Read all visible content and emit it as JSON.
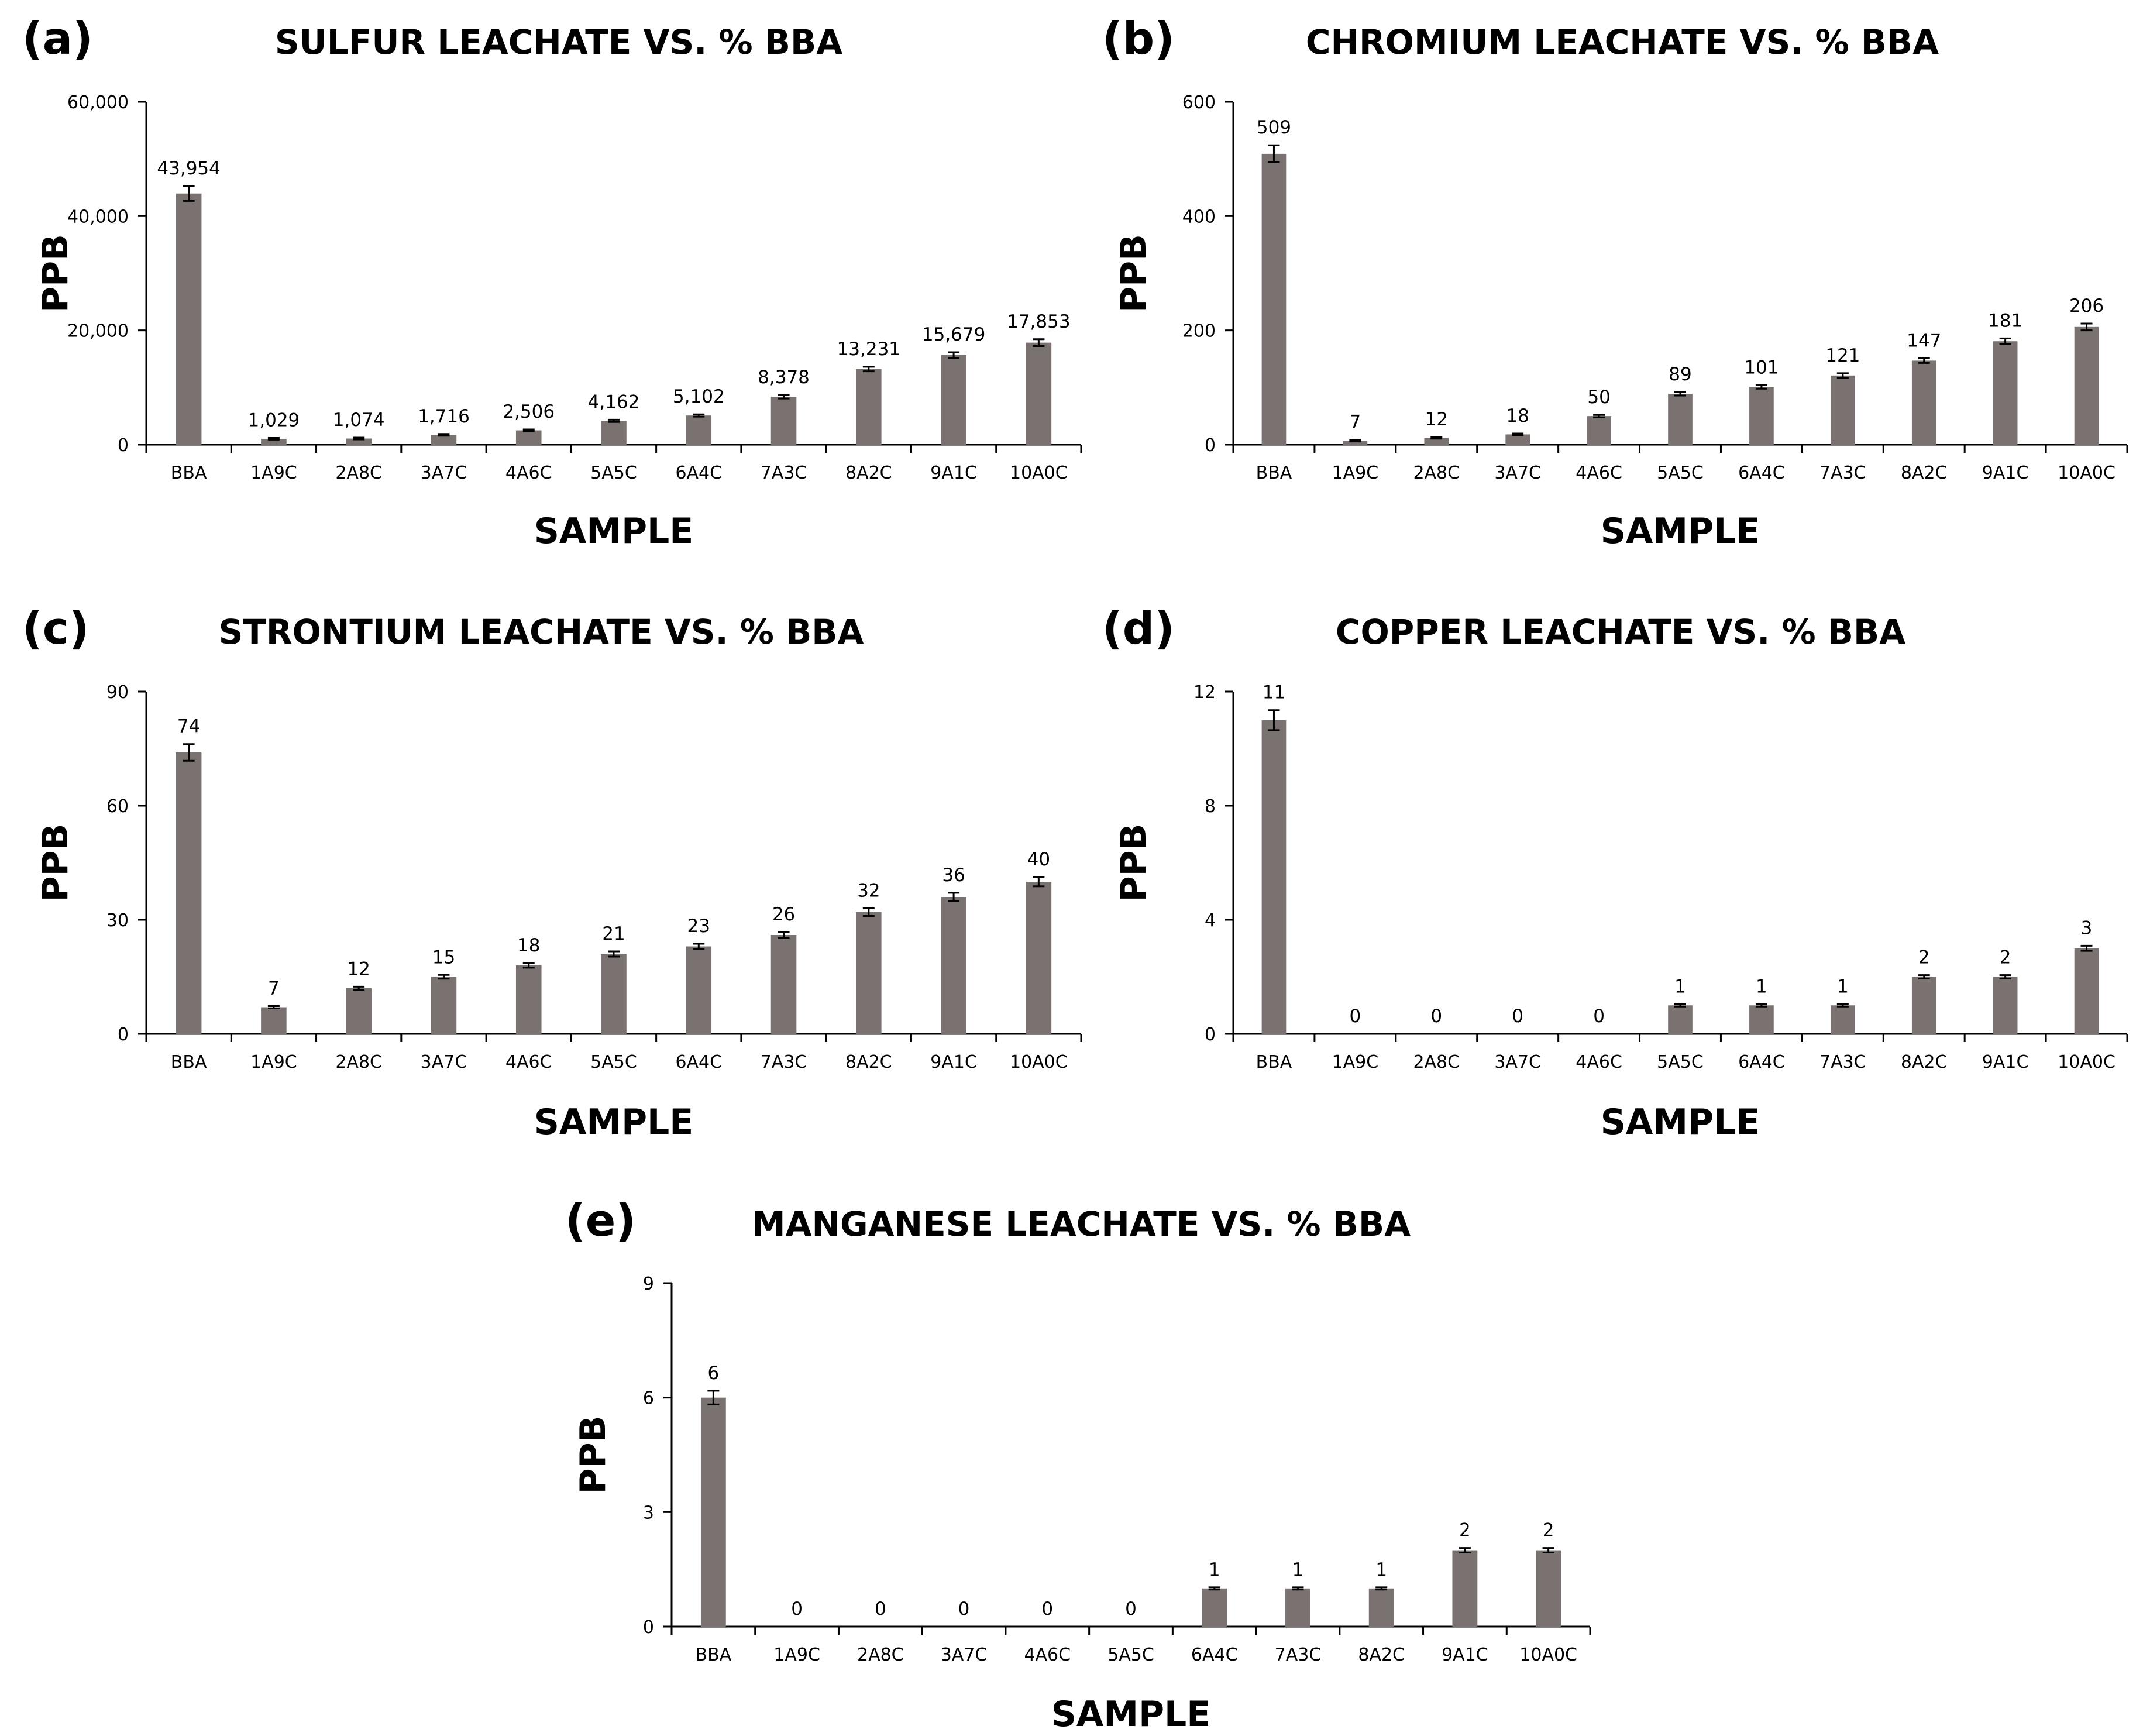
{
  "chart_data": [
    {
      "type": "bar",
      "panel": "(a)",
      "title": "SULFUR LEACHATE VS. % BBA",
      "xlabel": "SAMPLE",
      "ylabel": "PPB",
      "ylim": [
        0,
        60000
      ],
      "yticks": [
        "0",
        "20,000",
        "40,000",
        "60,000"
      ],
      "categories": [
        "BBA",
        "1A9C",
        "2A8C",
        "3A7C",
        "4A6C",
        "5A5C",
        "6A4C",
        "7A3C",
        "8A2C",
        "9A1C",
        "10A0C"
      ],
      "values": [
        43954,
        1029,
        1074,
        1716,
        2506,
        4162,
        5102,
        8378,
        13231,
        15679,
        17853
      ],
      "value_labels": [
        "43,954",
        "1,029",
        "1,074",
        "1,716",
        "2,506",
        "4,162",
        "5,102",
        "8,378",
        "13,231",
        "15,679",
        "17,853"
      ],
      "errors": [
        1300,
        150,
        150,
        150,
        150,
        200,
        200,
        300,
        400,
        500,
        600
      ],
      "bar_color": "#7a7270"
    },
    {
      "type": "bar",
      "panel": "(b)",
      "title": "CHROMIUM LEACHATE VS. % BBA",
      "xlabel": "SAMPLE",
      "ylabel": "PPB",
      "ylim": [
        0,
        600
      ],
      "yticks": [
        "0",
        "200",
        "400",
        "600"
      ],
      "categories": [
        "BBA",
        "1A9C",
        "2A8C",
        "3A7C",
        "4A6C",
        "5A5C",
        "6A4C",
        "7A3C",
        "8A2C",
        "9A1C",
        "10A0C"
      ],
      "values": [
        509,
        7,
        12,
        18,
        50,
        89,
        101,
        121,
        147,
        181,
        206
      ],
      "value_labels": [
        "509",
        "7",
        "12",
        "18",
        "50",
        "89",
        "101",
        "121",
        "147",
        "181",
        "206"
      ],
      "errors": [
        15,
        1.5,
        1.5,
        1.5,
        2,
        3,
        3,
        4,
        4,
        5,
        6
      ],
      "bar_color": "#7a7270"
    },
    {
      "type": "bar",
      "panel": "(c)",
      "title": "STRONTIUM LEACHATE VS. % BBA",
      "xlabel": "SAMPLE",
      "ylabel": "PPB",
      "ylim": [
        0,
        90
      ],
      "yticks": [
        "0",
        "30",
        "60",
        "90"
      ],
      "categories": [
        "BBA",
        "1A9C",
        "2A8C",
        "3A7C",
        "4A6C",
        "5A5C",
        "6A4C",
        "7A3C",
        "8A2C",
        "9A1C",
        "10A0C"
      ],
      "values": [
        74,
        7,
        12,
        15,
        18,
        21,
        23,
        26,
        32,
        36,
        40
      ],
      "value_labels": [
        "74",
        "7",
        "12",
        "15",
        "18",
        "21",
        "23",
        "26",
        "32",
        "36",
        "40"
      ],
      "errors": [
        2.2,
        0.3,
        0.4,
        0.5,
        0.6,
        0.7,
        0.7,
        0.8,
        1,
        1.1,
        1.2
      ],
      "bar_color": "#7a7270"
    },
    {
      "type": "bar",
      "panel": "(d)",
      "title": "COPPER LEACHATE VS. % BBA",
      "xlabel": "SAMPLE",
      "ylabel": "PPB",
      "ylim": [
        0,
        12
      ],
      "yticks": [
        "0",
        "4",
        "8",
        "12"
      ],
      "categories": [
        "BBA",
        "1A9C",
        "2A8C",
        "3A7C",
        "4A6C",
        "5A5C",
        "6A4C",
        "7A3C",
        "8A2C",
        "9A1C",
        "10A0C"
      ],
      "values": [
        11,
        0,
        0,
        0,
        0,
        1,
        1,
        1,
        2,
        2,
        3
      ],
      "value_labels": [
        "11",
        "0",
        "0",
        "0",
        "0",
        "1",
        "1",
        "1",
        "2",
        "2",
        "3"
      ],
      "errors": [
        0.35,
        0,
        0,
        0,
        0,
        0.04,
        0.04,
        0.04,
        0.06,
        0.06,
        0.09
      ],
      "bar_color": "#7a7270"
    },
    {
      "type": "bar",
      "panel": "(e)",
      "title": "MANGANESE LEACHATE VS. % BBA",
      "xlabel": "SAMPLE",
      "ylabel": "PPB",
      "ylim": [
        0,
        9
      ],
      "yticks": [
        "0",
        "3",
        "6",
        "9"
      ],
      "categories": [
        "BBA",
        "1A9C",
        "2A8C",
        "3A7C",
        "4A6C",
        "5A5C",
        "6A4C",
        "7A3C",
        "8A2C",
        "9A1C",
        "10A0C"
      ],
      "values": [
        6,
        0,
        0,
        0,
        0,
        0,
        1,
        1,
        1,
        2,
        2
      ],
      "value_labels": [
        "6",
        "0",
        "0",
        "0",
        "0",
        "0",
        "1",
        "1",
        "1",
        "2",
        "2"
      ],
      "errors": [
        0.18,
        0,
        0,
        0,
        0,
        0,
        0.03,
        0.03,
        0.03,
        0.06,
        0.06
      ],
      "bar_color": "#7a7270"
    }
  ]
}
